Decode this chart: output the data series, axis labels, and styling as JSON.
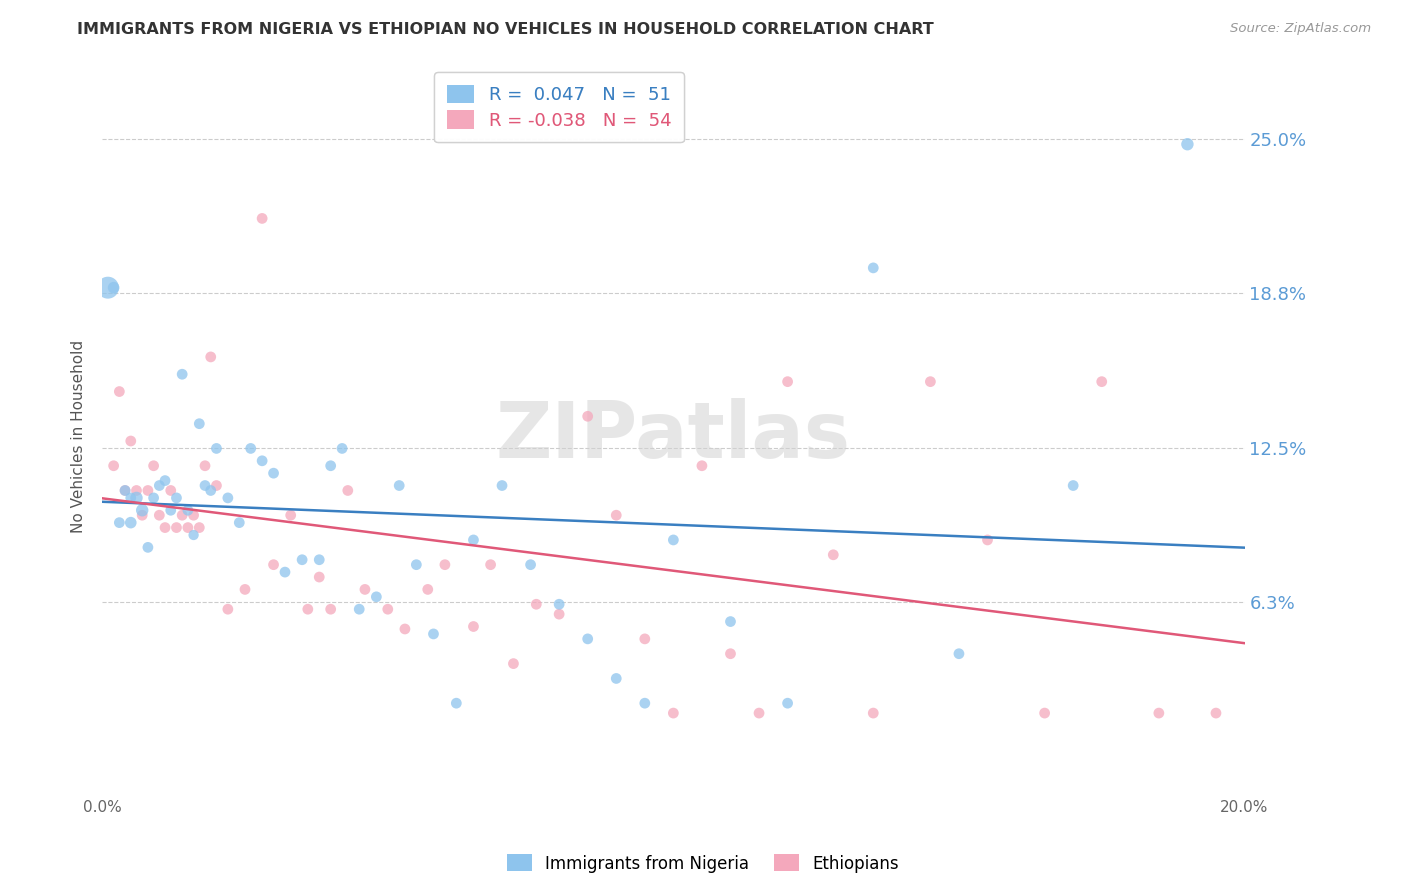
{
  "title": "IMMIGRANTS FROM NIGERIA VS ETHIOPIAN NO VEHICLES IN HOUSEHOLD CORRELATION CHART",
  "source": "Source: ZipAtlas.com",
  "ylabel": "No Vehicles in Household",
  "right_yticks": [
    "25.0%",
    "18.8%",
    "12.5%",
    "6.3%"
  ],
  "right_ytick_vals": [
    0.25,
    0.188,
    0.125,
    0.063
  ],
  "r_nigeria": 0.047,
  "n_nigeria": 51,
  "r_ethiopia": -0.038,
  "n_ethiopia": 54,
  "color_nigeria": "#8EC4ED",
  "color_ethiopia": "#F4A8BC",
  "trendline_nigeria": "#3A7FC1",
  "trendline_ethiopia": "#E05878",
  "watermark": "ZIPatlas",
  "xlim": [
    0.0,
    0.2
  ],
  "ylim": [
    -0.015,
    0.275
  ],
  "nigeria_x": [
    0.001,
    0.002,
    0.003,
    0.004,
    0.005,
    0.005,
    0.006,
    0.007,
    0.008,
    0.009,
    0.01,
    0.011,
    0.012,
    0.013,
    0.014,
    0.015,
    0.016,
    0.017,
    0.018,
    0.019,
    0.02,
    0.022,
    0.024,
    0.026,
    0.028,
    0.03,
    0.032,
    0.035,
    0.038,
    0.04,
    0.042,
    0.045,
    0.048,
    0.052,
    0.055,
    0.058,
    0.062,
    0.065,
    0.07,
    0.075,
    0.08,
    0.085,
    0.09,
    0.095,
    0.1,
    0.11,
    0.12,
    0.135,
    0.15,
    0.17,
    0.19
  ],
  "nigeria_y": [
    0.19,
    0.19,
    0.095,
    0.108,
    0.095,
    0.105,
    0.105,
    0.1,
    0.085,
    0.105,
    0.11,
    0.112,
    0.1,
    0.105,
    0.155,
    0.1,
    0.09,
    0.135,
    0.11,
    0.108,
    0.125,
    0.105,
    0.095,
    0.125,
    0.12,
    0.115,
    0.075,
    0.08,
    0.08,
    0.118,
    0.125,
    0.06,
    0.065,
    0.11,
    0.078,
    0.05,
    0.022,
    0.088,
    0.11,
    0.078,
    0.062,
    0.048,
    0.032,
    0.022,
    0.088,
    0.055,
    0.022,
    0.198,
    0.042,
    0.11,
    0.248
  ],
  "nigeria_size": [
    250,
    70,
    60,
    60,
    70,
    60,
    80,
    80,
    60,
    60,
    60,
    60,
    60,
    60,
    60,
    60,
    55,
    60,
    60,
    60,
    60,
    60,
    60,
    60,
    60,
    60,
    60,
    60,
    60,
    60,
    60,
    60,
    60,
    60,
    60,
    60,
    60,
    60,
    60,
    60,
    60,
    60,
    60,
    60,
    60,
    60,
    60,
    60,
    60,
    60,
    80
  ],
  "ethiopia_x": [
    0.002,
    0.003,
    0.004,
    0.005,
    0.006,
    0.007,
    0.008,
    0.009,
    0.01,
    0.011,
    0.012,
    0.013,
    0.014,
    0.015,
    0.016,
    0.017,
    0.018,
    0.019,
    0.02,
    0.022,
    0.025,
    0.028,
    0.03,
    0.033,
    0.036,
    0.038,
    0.04,
    0.043,
    0.046,
    0.05,
    0.053,
    0.057,
    0.06,
    0.065,
    0.068,
    0.072,
    0.076,
    0.08,
    0.085,
    0.09,
    0.095,
    0.1,
    0.105,
    0.11,
    0.115,
    0.12,
    0.128,
    0.135,
    0.145,
    0.155,
    0.165,
    0.175,
    0.185,
    0.195
  ],
  "ethiopia_y": [
    0.118,
    0.148,
    0.108,
    0.128,
    0.108,
    0.098,
    0.108,
    0.118,
    0.098,
    0.093,
    0.108,
    0.093,
    0.098,
    0.093,
    0.098,
    0.093,
    0.118,
    0.162,
    0.11,
    0.06,
    0.068,
    0.218,
    0.078,
    0.098,
    0.06,
    0.073,
    0.06,
    0.108,
    0.068,
    0.06,
    0.052,
    0.068,
    0.078,
    0.053,
    0.078,
    0.038,
    0.062,
    0.058,
    0.138,
    0.098,
    0.048,
    0.018,
    0.118,
    0.042,
    0.018,
    0.152,
    0.082,
    0.018,
    0.152,
    0.088,
    0.018,
    0.152,
    0.018,
    0.018
  ],
  "ethiopia_size": [
    60,
    60,
    60,
    60,
    60,
    60,
    60,
    60,
    60,
    60,
    60,
    60,
    60,
    60,
    60,
    60,
    60,
    60,
    60,
    60,
    60,
    60,
    60,
    60,
    60,
    60,
    60,
    60,
    60,
    60,
    60,
    60,
    60,
    60,
    60,
    60,
    60,
    60,
    60,
    60,
    60,
    60,
    60,
    60,
    60,
    60,
    60,
    60,
    60,
    60,
    60,
    60,
    60,
    60
  ],
  "background_color": "#FFFFFF",
  "grid_color": "#CCCCCC",
  "ytick_label_color": "#5B9BD5",
  "title_color": "#333333",
  "source_color": "#999999"
}
